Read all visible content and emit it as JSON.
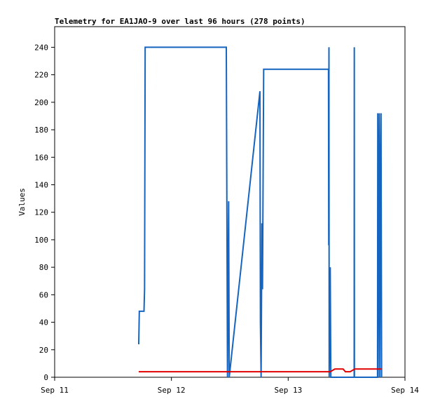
{
  "chart_data": {
    "type": "line",
    "title": "Telemetry for EA1JAO-9 over last 96 hours (278 points)",
    "y_label": "Values",
    "xlim": [
      0,
      3
    ],
    "xticks": [
      {
        "value": 0,
        "label": "Sep 11"
      },
      {
        "value": 1,
        "label": "Sep 12"
      },
      {
        "value": 2,
        "label": "Sep 13"
      },
      {
        "value": 3,
        "label": "Sep 14"
      }
    ],
    "ylim": [
      0,
      255
    ],
    "yticks": [
      0,
      20,
      40,
      60,
      80,
      100,
      120,
      140,
      160,
      180,
      200,
      220,
      240
    ],
    "series": [
      {
        "color": "#1565c0",
        "x": [
          0.72,
          0.725,
          0.765,
          0.77,
          0.775,
          1.47,
          1.48,
          1.49,
          1.495,
          1.758,
          1.762,
          1.768,
          1.775,
          1.78,
          1.79,
          2.345,
          2.347,
          2.349,
          2.351,
          2.36,
          2.365,
          2.565,
          2.566,
          2.567,
          2.765,
          2.767,
          2.77,
          2.775,
          2.78,
          2.785,
          2.79,
          2.795,
          2.8
        ],
        "values": [
          24,
          48,
          48,
          64,
          240,
          240,
          0,
          128,
          0,
          208,
          40,
          0,
          112,
          64,
          224,
          224,
          96,
          240,
          0,
          80,
          0,
          0,
          240,
          0,
          0,
          192,
          0,
          96,
          192,
          0,
          144,
          192,
          0
        ]
      },
      {
        "color": "#e00000",
        "x": [
          0.72,
          2.345,
          2.36,
          2.4,
          2.47,
          2.49,
          2.53,
          2.55,
          2.57,
          2.8
        ],
        "values": [
          4,
          4,
          4,
          6,
          6,
          4,
          4,
          5,
          6,
          6
        ]
      }
    ]
  }
}
